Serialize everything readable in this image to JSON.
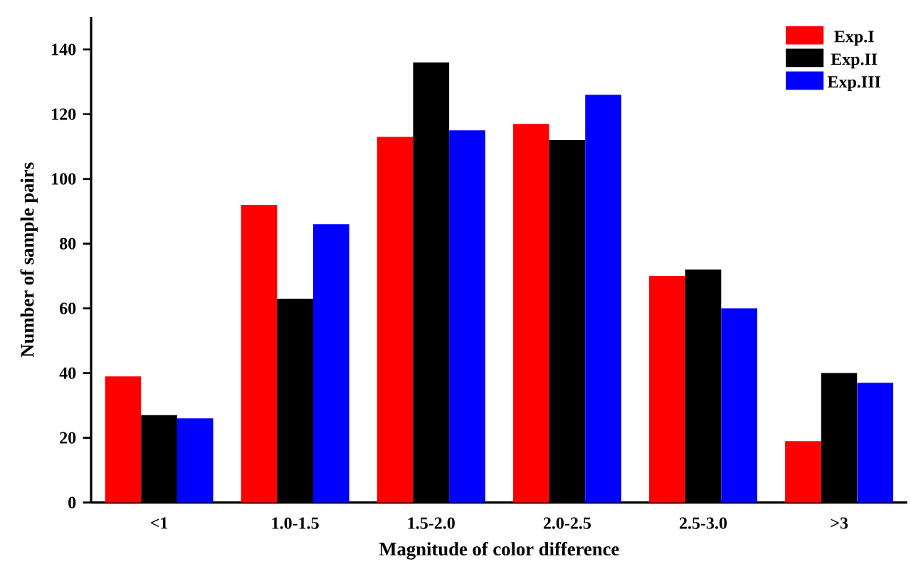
{
  "chart_data": {
    "type": "bar",
    "xlabel": "Magnitude of color difference",
    "ylabel": "Number of sample pairs",
    "categories": [
      "<1",
      "1.0-1.5",
      "1.5-2.0",
      "2.0-2.5",
      "2.5-3.0",
      ">3"
    ],
    "series": [
      {
        "name": "Exp.I",
        "color": "#ff0000",
        "values": [
          39,
          92,
          113,
          117,
          70,
          19
        ]
      },
      {
        "name": "Exp.II",
        "color": "#000000",
        "values": [
          27,
          63,
          136,
          112,
          72,
          40
        ]
      },
      {
        "name": "Exp.III",
        "color": "#0000ff",
        "values": [
          26,
          86,
          115,
          126,
          60,
          37
        ]
      }
    ],
    "ylim": [
      0,
      150
    ],
    "yticks": [
      0,
      20,
      40,
      60,
      80,
      100,
      120,
      140
    ],
    "legend": "top right",
    "grid": false
  }
}
